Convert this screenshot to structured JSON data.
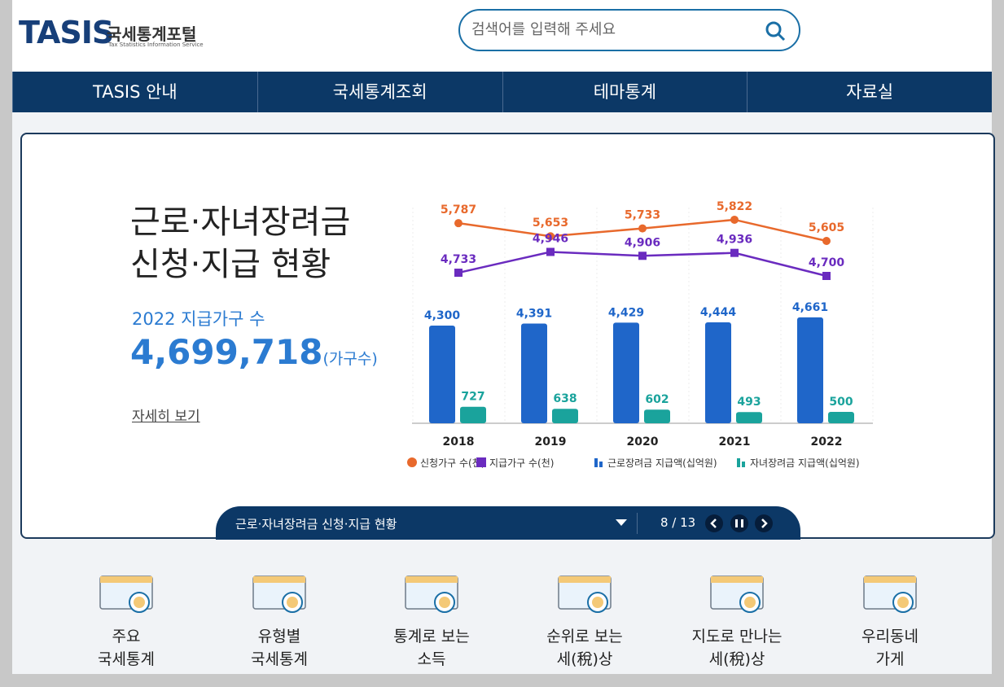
{
  "header": {
    "logo": "TASIS",
    "portal": "국세통계포털",
    "subtitle": "Tax Statistics Information Service",
    "search_placeholder": "검색어를 입력해 주세요"
  },
  "nav": [
    "TASIS 안내",
    "국세통계조회",
    "테마통계",
    "자료실"
  ],
  "banner": {
    "title_lines": [
      "근로·자녀장려금",
      "신청·지급 현황"
    ],
    "stat_label": "2022 지급가구 수",
    "stat_value": "4,699,718",
    "stat_unit": "(가구수)",
    "more": "자세히 보기",
    "caption": "근로·자녀장려금 신청·지급 현황",
    "counter": "8 / 13"
  },
  "chart_data": {
    "type": "bar",
    "categories": [
      "2018",
      "2019",
      "2020",
      "2021",
      "2022"
    ],
    "series": [
      {
        "name": "신청가구 수(천)",
        "color": "#e8692c",
        "kind": "line",
        "marker": "circle",
        "values": [
          5787,
          5653,
          5733,
          5822,
          5605
        ],
        "value_labels": [
          "5,787",
          "5,653",
          "5,733",
          "5,822",
          "5,605"
        ]
      },
      {
        "name": "지급가구 수(천)",
        "color": "#6a2bbf",
        "kind": "line",
        "marker": "square",
        "values": [
          4733,
          4946,
          4906,
          4936,
          4700
        ],
        "value_labels": [
          "4,733",
          "4,946",
          "4,906",
          "4,936",
          "4,700"
        ]
      },
      {
        "name": "근로장려금 지급액(십억원)",
        "color": "#1f66c9",
        "kind": "bar",
        "values": [
          4300,
          4391,
          4429,
          4444,
          4661
        ],
        "value_labels": [
          "4,300",
          "4,391",
          "4,429",
          "4,444",
          "4,661"
        ]
      },
      {
        "name": "자녀장려금 지급액(십억원)",
        "color": "#1aa39c",
        "kind": "bar",
        "values": [
          727,
          638,
          602,
          493,
          500
        ]
      }
    ]
  },
  "quick_menu": [
    [
      "주요",
      "국세통계"
    ],
    [
      "유형별",
      "국세통계"
    ],
    [
      "통계로 보는",
      "소득"
    ],
    [
      "순위로 보는",
      "세(稅)상"
    ],
    [
      "지도로 만나는",
      "세(稅)상"
    ],
    [
      "우리동네",
      "가게"
    ]
  ]
}
